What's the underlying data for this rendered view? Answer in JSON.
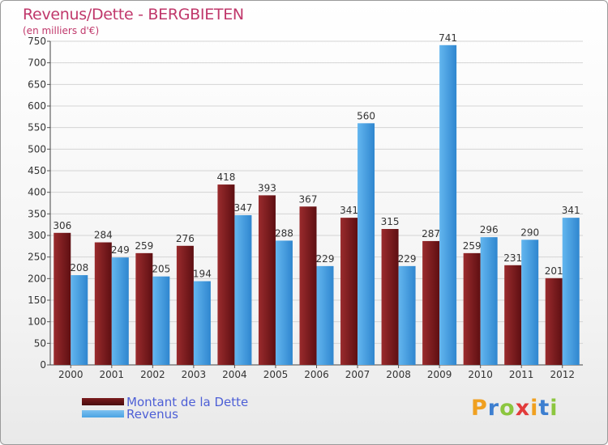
{
  "header": {
    "title": "Revenus/Dette - BERGBIETEN",
    "subtitle": "(en milliers d'€)"
  },
  "legend": [
    {
      "label": "Montant de la Dette",
      "color": "#7a1a1c"
    },
    {
      "label": "Revenus",
      "color": "#4aa3e3"
    }
  ],
  "logo": {
    "letters": [
      "P",
      "r",
      "o",
      "x",
      "i",
      "t",
      "i"
    ],
    "colors": [
      "#f0a020",
      "#3d7fd0",
      "#8cc63f",
      "#e23b3b",
      "#f0a020",
      "#3d7fd0",
      "#8cc63f"
    ]
  },
  "chart_data": {
    "type": "bar",
    "categories": [
      "2000",
      "2001",
      "2002",
      "2003",
      "2004",
      "2005",
      "2006",
      "2007",
      "2008",
      "2009",
      "2010",
      "2011",
      "2012"
    ],
    "series": [
      {
        "name": "Montant de la Dette",
        "color": "#7a1a1c",
        "values": [
          306,
          284,
          259,
          276,
          418,
          393,
          367,
          341,
          315,
          287,
          259,
          231,
          201
        ]
      },
      {
        "name": "Revenus",
        "color": "#4aa3e3",
        "values": [
          208,
          249,
          205,
          194,
          347,
          288,
          229,
          560,
          229,
          741,
          296,
          290,
          341
        ]
      }
    ],
    "yticks": [
      0,
      50,
      100,
      150,
      200,
      250,
      300,
      350,
      400,
      450,
      500,
      550,
      600,
      650,
      700,
      750
    ],
    "ylim": [
      0,
      750
    ],
    "title": "Revenus/Dette - BERGBIETEN",
    "ylabel": "(en milliers d'€)",
    "grid": true,
    "legend_position": "bottom-left"
  }
}
